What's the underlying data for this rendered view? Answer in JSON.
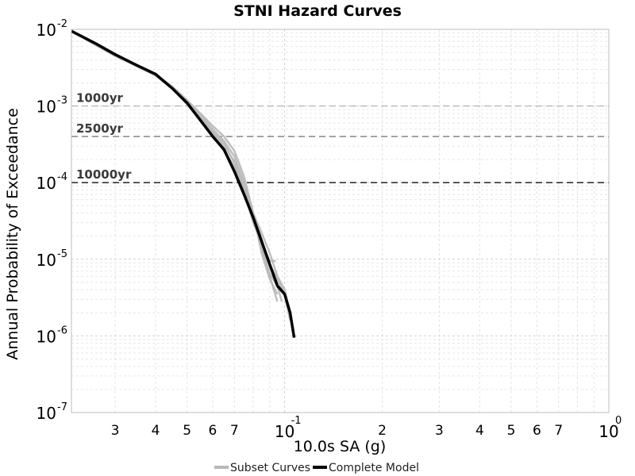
{
  "chart_data": {
    "type": "line",
    "title": "STNI Hazard Curves",
    "xlabel": "10.0s SA (g)",
    "ylabel": "Annual Probability of Exceedance",
    "x_scale": "log",
    "y_scale": "log",
    "xlim": [
      0.022,
      1.0
    ],
    "ylim": [
      1e-07,
      0.01
    ],
    "grid": true,
    "legend_position": "bottom-center",
    "x_minor_tick_labels": [
      {
        "value": 0.03,
        "label": "3"
      },
      {
        "value": 0.04,
        "label": "4"
      },
      {
        "value": 0.05,
        "label": "5"
      },
      {
        "value": 0.06,
        "label": "6"
      },
      {
        "value": 0.07,
        "label": "7"
      },
      {
        "value": 0.2,
        "label": "2"
      },
      {
        "value": 0.3,
        "label": "3"
      },
      {
        "value": 0.4,
        "label": "4"
      },
      {
        "value": 0.5,
        "label": "5"
      },
      {
        "value": 0.6,
        "label": "6"
      },
      {
        "value": 0.7,
        "label": "7"
      }
    ],
    "x_major_tick_labels": [
      {
        "value": 0.1,
        "base": "10",
        "exp": "-1"
      },
      {
        "value": 1.0,
        "base": "10",
        "exp": "0"
      }
    ],
    "y_major_tick_labels": [
      {
        "value": 0.01,
        "base": "10",
        "exp": "-2"
      },
      {
        "value": 0.001,
        "base": "10",
        "exp": "-3"
      },
      {
        "value": 0.0001,
        "base": "10",
        "exp": "-4"
      },
      {
        "value": 1e-05,
        "base": "10",
        "exp": "-5"
      },
      {
        "value": 1e-06,
        "base": "10",
        "exp": "-6"
      },
      {
        "value": 1e-07,
        "base": "10",
        "exp": "-7"
      }
    ],
    "reference_lines": [
      {
        "label": "1000yr",
        "y": 0.001,
        "color": "#b4b4b4"
      },
      {
        "label": "2500yr",
        "y": 0.0004,
        "color": "#7a7a7a"
      },
      {
        "label": "10000yr",
        "y": 0.0001,
        "color": "#111111"
      }
    ],
    "series": [
      {
        "name": "Subset Curves",
        "color": "#b8b8b8",
        "curves": [
          {
            "x": [
              0.022,
              0.026,
              0.03,
              0.035,
              0.04,
              0.045,
              0.05,
              0.055,
              0.06,
              0.065,
              0.07,
              0.075,
              0.08,
              0.085,
              0.09,
              0.094
            ],
            "y": [
              0.0095,
              0.0063,
              0.0045,
              0.0033,
              0.0025,
              0.0017,
              0.0011,
              0.0007,
              0.00046,
              0.00033,
              0.00018,
              8e-05,
              3e-05,
              1.6e-05,
              9.5e-06,
              9.5e-06
            ]
          },
          {
            "x": [
              0.022,
              0.026,
              0.03,
              0.035,
              0.04,
              0.045,
              0.05,
              0.055,
              0.06,
              0.065,
              0.07,
              0.075,
              0.08,
              0.085,
              0.09,
              0.095
            ],
            "y": [
              0.0095,
              0.0065,
              0.0046,
              0.0034,
              0.0026,
              0.0018,
              0.0012,
              0.0008,
              0.00055,
              0.0004,
              0.00026,
              0.00012,
              4e-05,
              1.5e-05,
              6e-06,
              2.8e-06
            ]
          },
          {
            "x": [
              0.022,
              0.026,
              0.03,
              0.035,
              0.04,
              0.045,
              0.05,
              0.055,
              0.06,
              0.065,
              0.07,
              0.075,
              0.08,
              0.085,
              0.09,
              0.095
            ],
            "y": [
              0.0095,
              0.0067,
              0.0048,
              0.0034,
              0.0026,
              0.0017,
              0.00115,
              0.00075,
              0.0005,
              0.00035,
              0.00022,
              0.0001,
              4e-05,
              1.2e-05,
              5.5e-06,
              3.5e-06
            ]
          },
          {
            "x": [
              0.022,
              0.026,
              0.03,
              0.035,
              0.04,
              0.045,
              0.05,
              0.055,
              0.06,
              0.065,
              0.07,
              0.075,
              0.08,
              0.085,
              0.09,
              0.095,
              0.098
            ],
            "y": [
              0.0095,
              0.0066,
              0.0047,
              0.0034,
              0.0026,
              0.0017,
              0.0011,
              0.0007,
              0.00045,
              0.0003,
              0.00019,
              9e-05,
              3.5e-05,
              1.4e-05,
              6.5e-06,
              4.5e-06,
              2.8e-06
            ]
          },
          {
            "x": [
              0.022,
              0.026,
              0.03,
              0.035,
              0.04,
              0.045,
              0.05,
              0.055,
              0.06,
              0.065,
              0.07,
              0.075,
              0.08,
              0.085,
              0.09,
              0.095,
              0.1,
              0.104
            ],
            "y": [
              0.0095,
              0.0066,
              0.0047,
              0.0034,
              0.0026,
              0.0017,
              0.00105,
              0.00065,
              0.00041,
              0.00026,
              0.00015,
              8e-05,
              4e-05,
              1.8e-05,
              8.5e-06,
              5.5e-06,
              3.5e-06,
              1.6e-06
            ]
          },
          {
            "x": [
              0.022,
              0.026,
              0.03,
              0.035,
              0.04,
              0.045,
              0.05,
              0.055,
              0.06,
              0.065,
              0.07,
              0.075,
              0.08,
              0.085,
              0.09,
              0.095,
              0.1,
              0.104,
              0.106
            ],
            "y": [
              0.0095,
              0.0066,
              0.0047,
              0.0034,
              0.0026,
              0.0017,
              0.00105,
              0.00066,
              0.00042,
              0.00027,
              0.00016,
              8e-05,
              4e-05,
              2.2e-05,
              1.2e-05,
              6e-06,
              4e-06,
              2e-06,
              1.2e-06
            ]
          }
        ]
      },
      {
        "name": "Complete Model",
        "color": "#000000",
        "x": [
          0.022,
          0.026,
          0.03,
          0.035,
          0.04,
          0.045,
          0.05,
          0.055,
          0.06,
          0.065,
          0.07,
          0.075,
          0.08,
          0.085,
          0.09,
          0.095,
          0.1,
          0.104,
          0.107
        ],
        "y": [
          0.0095,
          0.0066,
          0.0047,
          0.0034,
          0.0026,
          0.0017,
          0.0011,
          0.00065,
          0.0004,
          0.00027,
          0.00014,
          7e-05,
          3.5e-05,
          1.7e-05,
          8.5e-06,
          4.5e-06,
          3.5e-06,
          2e-06,
          9.5e-07
        ]
      }
    ]
  }
}
